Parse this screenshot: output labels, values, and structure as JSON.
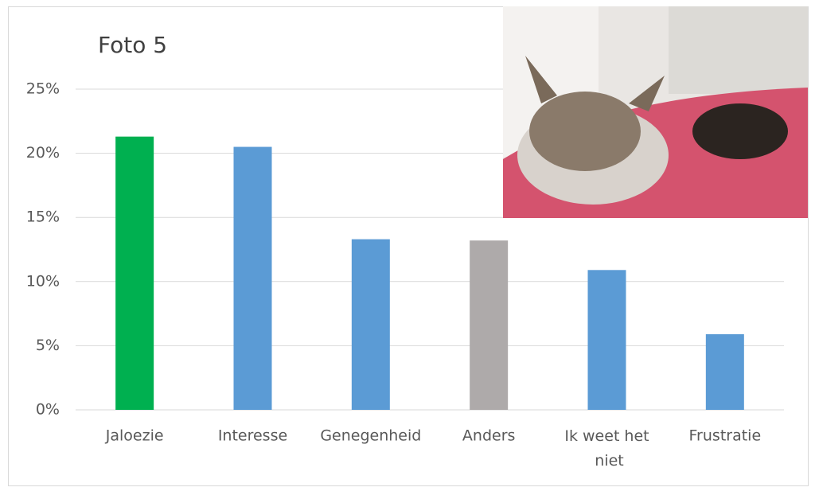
{
  "chart_data": {
    "type": "bar",
    "title": "Foto 5",
    "categories": [
      "Jaloezie",
      "Interesse",
      "Genegenheid",
      "Anders",
      "Ik weet het niet",
      "Frustratie"
    ],
    "values": [
      21.3,
      20.5,
      13.3,
      13.2,
      10.9,
      5.9
    ],
    "colors": [
      "#00b050",
      "#5b9bd5",
      "#5b9bd5",
      "#aeaaaa",
      "#5b9bd5",
      "#5b9bd5"
    ],
    "ylim": [
      0,
      25
    ],
    "yticks": [
      {
        "value": 0,
        "label": "0%"
      },
      {
        "value": 5,
        "label": "5%"
      },
      {
        "value": 10,
        "label": "10%"
      },
      {
        "value": 15,
        "label": "15%"
      },
      {
        "value": 20,
        "label": "20%"
      },
      {
        "value": 25,
        "label": "25%"
      }
    ],
    "grid": true
  }
}
